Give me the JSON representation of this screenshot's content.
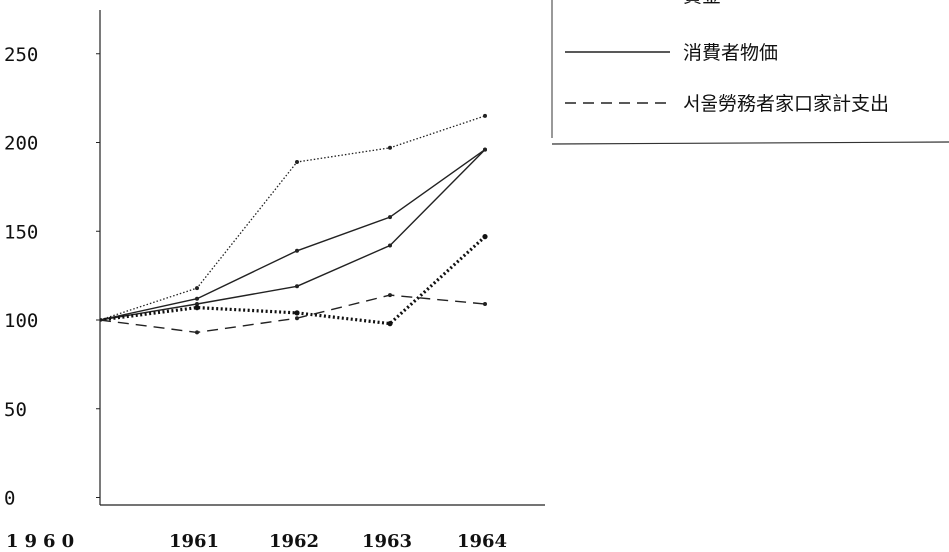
{
  "chart_data": {
    "type": "line",
    "title": "",
    "xlabel": "",
    "ylabel": "",
    "categories": [
      "1960",
      "1961",
      "1962",
      "1963",
      "1964"
    ],
    "x_tick_labels": [
      "1960",
      "1961",
      "1962",
      "1963",
      "1964"
    ],
    "y_ticks": [
      0,
      50,
      100,
      150,
      200,
      250
    ],
    "ylim": [
      0,
      280
    ],
    "grid": false,
    "legend_placement": "top-right",
    "series": [
      {
        "values": [
          100,
          118,
          189,
          197,
          215
        ],
        "style": "dotted-thin",
        "color": "#222222"
      },
      {
        "values": [
          100,
          112,
          139,
          158,
          196
        ],
        "style": "solid",
        "color": "#222222"
      },
      {
        "values": [
          100,
          109,
          119,
          142,
          196
        ],
        "style": "solid",
        "color": "#222222"
      },
      {
        "values": [
          100,
          107,
          104,
          98,
          147
        ],
        "style": "dotted-thick",
        "color": "#111111"
      },
      {
        "name": "서울勞務者家口家計支出",
        "values": [
          100,
          93,
          101,
          114,
          109
        ],
        "style": "dashed",
        "color": "#222222"
      }
    ],
    "legend": [
      {
        "label": "賃金",
        "style": "dotted-thin"
      },
      {
        "label": "消費者物価",
        "style": "solid"
      },
      {
        "label": "서울勞務者家口家計支出",
        "style": "dashed"
      }
    ]
  }
}
